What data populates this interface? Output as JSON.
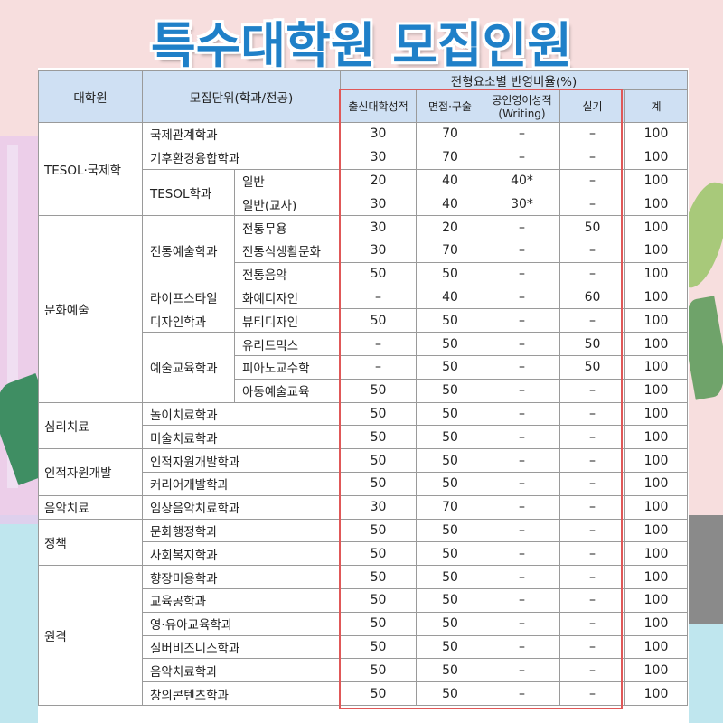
{
  "title": "특수대학원 모집인원",
  "headers": {
    "grad_school": "대학원",
    "unit": "모집단위(학과/전공)",
    "ratio_group": "전형요소별 반영비율(%)",
    "col1": "출신대학성적",
    "col2": "면접·구술",
    "col3_line1": "공인영어성적",
    "col3_line2": "(Writing)",
    "col4": "실기",
    "col5": "계"
  },
  "groups": [
    "TESOL·국제학",
    "문화예술",
    "심리치료",
    "인적자원개발",
    "음악치료",
    "정책",
    "원격"
  ],
  "departments": [
    "국제관계학과",
    "기후환경융합학과",
    "TESOL학과",
    "전통예술학과",
    "라이프스타일",
    "디자인학과",
    "예술교육학과",
    "놀이치료학과",
    "미술치료학과",
    "인적자원개발학과",
    "커리어개발학과",
    "임상음악치료학과",
    "문화행정학과",
    "사회복지학과",
    "향장미용학과",
    "교육공학과",
    "영·유아교육학과",
    "실버비즈니스학과",
    "음악치료학과",
    "창의콘텐츠학과"
  ],
  "majors": [
    "일반",
    "일반(교사)",
    "전통무용",
    "전통식생활문화",
    "전통음악",
    "화예디자인",
    "뷰티디자인",
    "유리드믹스",
    "피아노교수학",
    "아동예술교육"
  ],
  "rows": [
    [
      "30",
      "70",
      "–",
      "–",
      "100"
    ],
    [
      "30",
      "70",
      "–",
      "–",
      "100"
    ],
    [
      "20",
      "40",
      "40*",
      "–",
      "100"
    ],
    [
      "30",
      "40",
      "30*",
      "–",
      "100"
    ],
    [
      "30",
      "20",
      "–",
      "50",
      "100"
    ],
    [
      "30",
      "70",
      "–",
      "–",
      "100"
    ],
    [
      "50",
      "50",
      "–",
      "–",
      "100"
    ],
    [
      "–",
      "40",
      "–",
      "60",
      "100"
    ],
    [
      "50",
      "50",
      "–",
      "–",
      "100"
    ],
    [
      "–",
      "50",
      "–",
      "50",
      "100"
    ],
    [
      "–",
      "50",
      "–",
      "50",
      "100"
    ],
    [
      "50",
      "50",
      "–",
      "–",
      "100"
    ],
    [
      "50",
      "50",
      "–",
      "–",
      "100"
    ],
    [
      "50",
      "50",
      "–",
      "–",
      "100"
    ],
    [
      "50",
      "50",
      "–",
      "–",
      "100"
    ],
    [
      "50",
      "50",
      "–",
      "–",
      "100"
    ],
    [
      "30",
      "70",
      "–",
      "–",
      "100"
    ],
    [
      "50",
      "50",
      "–",
      "–",
      "100"
    ],
    [
      "50",
      "50",
      "–",
      "–",
      "100"
    ],
    [
      "50",
      "50",
      "–",
      "–",
      "100"
    ],
    [
      "50",
      "50",
      "–",
      "–",
      "100"
    ],
    [
      "50",
      "50",
      "–",
      "–",
      "100"
    ],
    [
      "50",
      "50",
      "–",
      "–",
      "100"
    ],
    [
      "50",
      "50",
      "–",
      "–",
      "100"
    ],
    [
      "50",
      "50",
      "–",
      "–",
      "100"
    ]
  ]
}
